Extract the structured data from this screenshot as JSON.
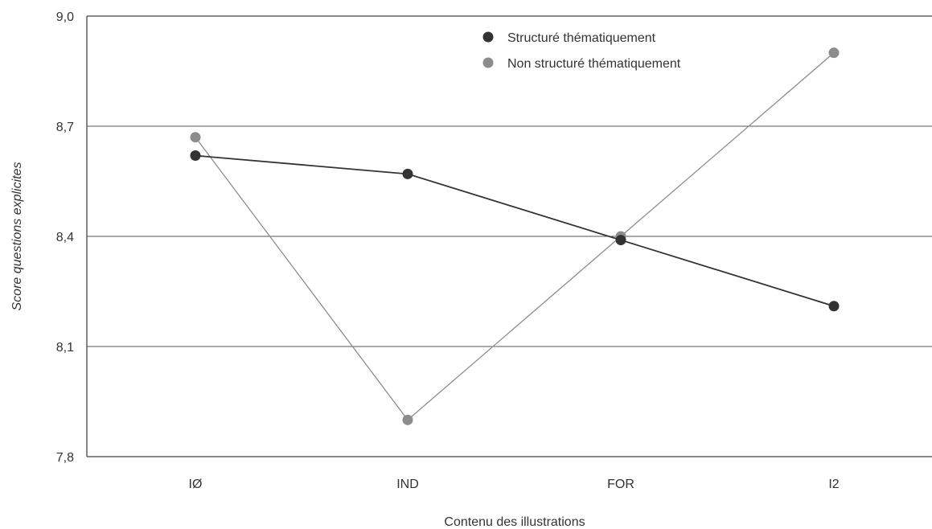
{
  "chart_data": {
    "type": "line",
    "title": "",
    "xlabel": "Contenu des illustrations",
    "ylabel": "Score questions explicites",
    "categories": [
      "IØ",
      "IND",
      "FOR",
      "I2"
    ],
    "ylim": [
      7.8,
      9.0
    ],
    "yticks": [
      "7,8",
      "8,1",
      "8,4",
      "8,7",
      "9,0"
    ],
    "ytick_values": [
      7.8,
      8.1,
      8.4,
      8.7,
      9.0
    ],
    "grid": true,
    "legend_position": "top-center",
    "series": [
      {
        "name": "Structuré thématiquement",
        "values": [
          8.62,
          8.57,
          8.39,
          8.21
        ],
        "color": "#333333"
      },
      {
        "name": "Non structuré thématiquement",
        "values": [
          8.67,
          7.9,
          8.4,
          8.9
        ],
        "color": "#8c8c8c"
      }
    ]
  }
}
